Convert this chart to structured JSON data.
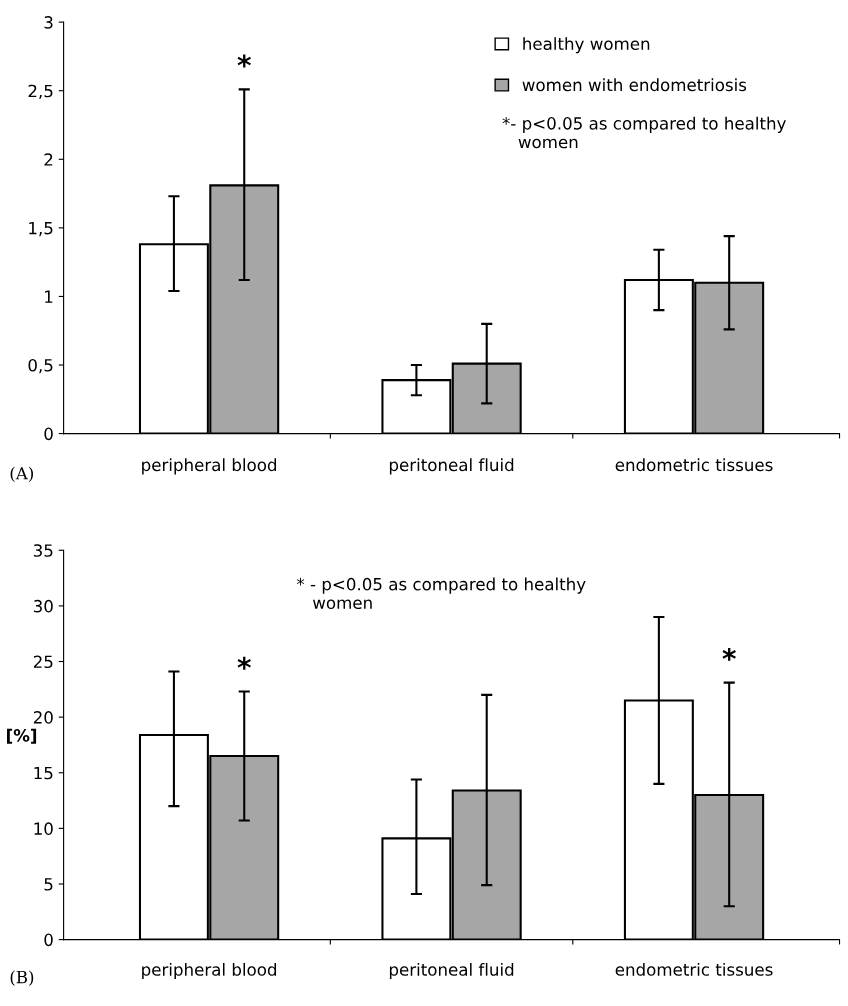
{
  "chart_data": [
    {
      "type": "bar",
      "categories": [
        "peripheral blood",
        "peritoneal fluid",
        "endometric tissues"
      ],
      "series": [
        {
          "name": "healthy women",
          "color": "#ffffff",
          "values": [
            1.38,
            0.39,
            1.12
          ],
          "errors": [
            [
              1.04,
              1.73
            ],
            [
              0.28,
              0.5
            ],
            [
              0.9,
              1.34
            ]
          ]
        },
        {
          "name": "women with endometriosis",
          "color": "#a6a6a6",
          "values": [
            1.81,
            0.51,
            1.1
          ],
          "errors": [
            [
              1.12,
              2.51
            ],
            [
              0.22,
              0.8
            ],
            [
              0.76,
              1.44
            ]
          ]
        }
      ],
      "ylim": [
        0,
        3
      ],
      "yticks": [
        0,
        {
          "value": 0.5,
          "label": "0,5"
        },
        1,
        {
          "value": 1.5,
          "label": "1,5"
        },
        2,
        {
          "value": 2.5,
          "label": "2,5"
        },
        3
      ],
      "legend": "top right",
      "grid": false,
      "annotations": [
        "(A)",
        "*- p<0.05 as compared to healthy\n   women",
        "*"
      ]
    },
    {
      "type": "bar",
      "categories": [
        "peripheral blood",
        "peritoneal fluid",
        "endometric tissues"
      ],
      "series": [
        {
          "color": "#ffffff",
          "values": [
            18.4,
            9.1,
            21.5
          ],
          "errors": [
            [
              12.0,
              24.1
            ],
            [
              4.1,
              14.4
            ],
            [
              14.0,
              29.0
            ]
          ]
        },
        {
          "color": "#a6a6a6",
          "values": [
            16.5,
            13.4,
            13.0
          ],
          "errors": [
            [
              10.7,
              22.3
            ],
            [
              4.9,
              22.0
            ],
            [
              3.0,
              23.1
            ]
          ]
        }
      ],
      "ylim": [
        0,
        35
      ],
      "yticks": [
        0,
        5,
        10,
        15,
        20,
        25,
        30,
        35
      ],
      "ylabel": "[%]",
      "grid": false,
      "annotations": [
        "(B)",
        "* - p<0.05 as compared to healthy\n   women",
        "*",
        "*"
      ]
    }
  ]
}
